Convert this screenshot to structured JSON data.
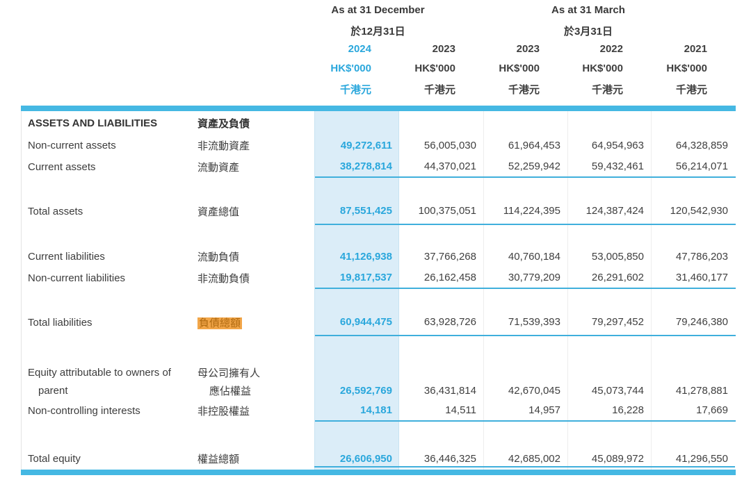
{
  "header": {
    "period_groups": [
      {
        "en": "As at 31 December",
        "zh": "於12月31日"
      },
      {
        "en": "As at 31 March",
        "zh": "於3月31日"
      }
    ],
    "columns": [
      {
        "year": "2024",
        "unit": "HK$'000",
        "unit_zh": "千港元"
      },
      {
        "year": "2023",
        "unit": "HK$'000",
        "unit_zh": "千港元"
      },
      {
        "year": "2023",
        "unit": "HK$'000",
        "unit_zh": "千港元"
      },
      {
        "year": "2022",
        "unit": "HK$'000",
        "unit_zh": "千港元"
      },
      {
        "year": "2021",
        "unit": "HK$'000",
        "unit_zh": "千港元"
      }
    ]
  },
  "section": {
    "title_en": "ASSETS AND LIABILITIES",
    "title_zh": "資產及負債"
  },
  "rows": [
    {
      "label_en": "Non-current assets",
      "label_zh": "非流動資產",
      "values": [
        "49,272,611",
        "56,005,030",
        "61,964,453",
        "64,954,963",
        "64,328,859"
      ]
    },
    {
      "label_en": "Current assets",
      "label_zh": "流動資產",
      "values": [
        "38,278,814",
        "44,370,021",
        "52,259,942",
        "59,432,461",
        "56,214,071"
      ]
    },
    {
      "label_en": "Total assets",
      "label_zh": "資產總值",
      "values": [
        "87,551,425",
        "100,375,051",
        "114,224,395",
        "124,387,424",
        "120,542,930"
      ]
    },
    {
      "label_en": "Current liabilities",
      "label_zh": "流動負債",
      "values": [
        "41,126,938",
        "37,766,268",
        "40,760,184",
        "53,005,850",
        "47,786,203"
      ]
    },
    {
      "label_en": "Non-current liabilities",
      "label_zh": "非流動負債",
      "values": [
        "19,817,537",
        "26,162,458",
        "30,779,209",
        "26,291,602",
        "31,460,177"
      ]
    },
    {
      "label_en": "Total liabilities",
      "label_zh": "負債總額",
      "values": [
        "60,944,475",
        "63,928,726",
        "71,539,393",
        "79,297,452",
        "79,246,380"
      ]
    },
    {
      "label_en": "Equity attributable to owners of",
      "label_en2": "parent",
      "label_zh": "母公司擁有人",
      "label_zh2": "應佔權益",
      "values": [
        "26,592,769",
        "36,431,814",
        "42,670,045",
        "45,073,744",
        "41,278,881"
      ]
    },
    {
      "label_en": "Non-controlling interests",
      "label_zh": "非控股權益",
      "values": [
        "14,181",
        "14,511",
        "14,957",
        "16,228",
        "17,669"
      ]
    },
    {
      "label_en": "Total equity",
      "label_zh": "權益總額",
      "values": [
        "26,606,950",
        "36,446,325",
        "42,685,002",
        "45,089,972",
        "41,296,550"
      ]
    }
  ],
  "colors": {
    "accent_cyan_bar": "#45b8e3",
    "accent_cyan_rule": "#3fafdc",
    "highlight_column_bg": "#dbedf8",
    "highlight_year_text": "#2aa7dc",
    "highlight_label_bg": "#f2a649",
    "highlight_label_text": "#b06a10",
    "body_text": "#3c3c3c"
  }
}
